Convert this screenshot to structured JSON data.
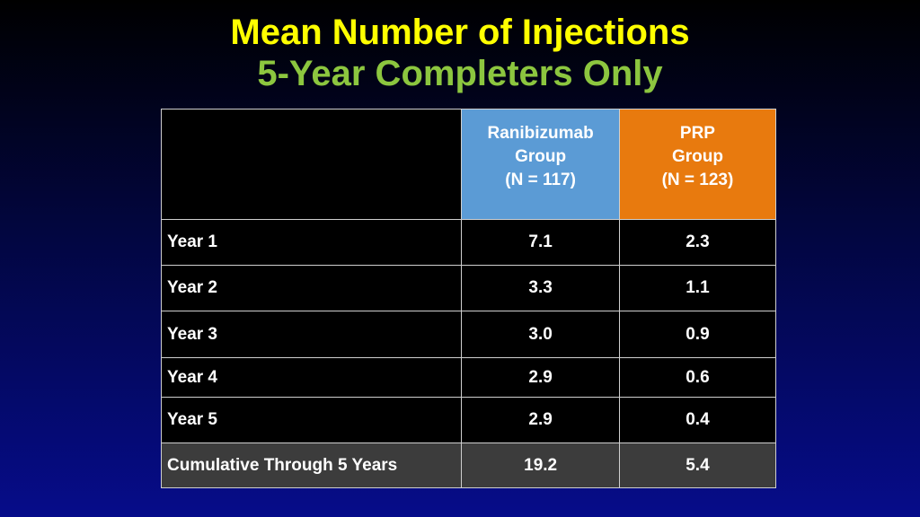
{
  "title": "Mean Number of Injections",
  "subtitle": "5-Year Completers Only",
  "columns": {
    "ranibizumab": [
      "Ranibizumab",
      "Group",
      "(N = 117)"
    ],
    "prp": [
      "PRP",
      "Group",
      "(N = 123)"
    ]
  },
  "rows": [
    {
      "label": "Year 1",
      "ranibizumab": "7.1",
      "prp": "2.3"
    },
    {
      "label": "Year 2",
      "ranibizumab": "3.3",
      "prp": "1.1"
    },
    {
      "label": "Year 3",
      "ranibizumab": "3.0",
      "prp": "0.9"
    },
    {
      "label": "Year 4",
      "ranibizumab": "2.9",
      "prp": "0.6"
    },
    {
      "label": "Year 5",
      "ranibizumab": "2.9",
      "prp": "0.4"
    }
  ],
  "cumulative": {
    "label": "Cumulative Through 5 Years",
    "ranibizumab": "19.2",
    "prp": "5.4"
  },
  "colors": {
    "title": "#ffff00",
    "subtitle": "#8cc63f",
    "ranibizumab_header": "#5b9bd5",
    "prp_header": "#e87a0e",
    "cumulative_row": "#3c3c3c"
  }
}
